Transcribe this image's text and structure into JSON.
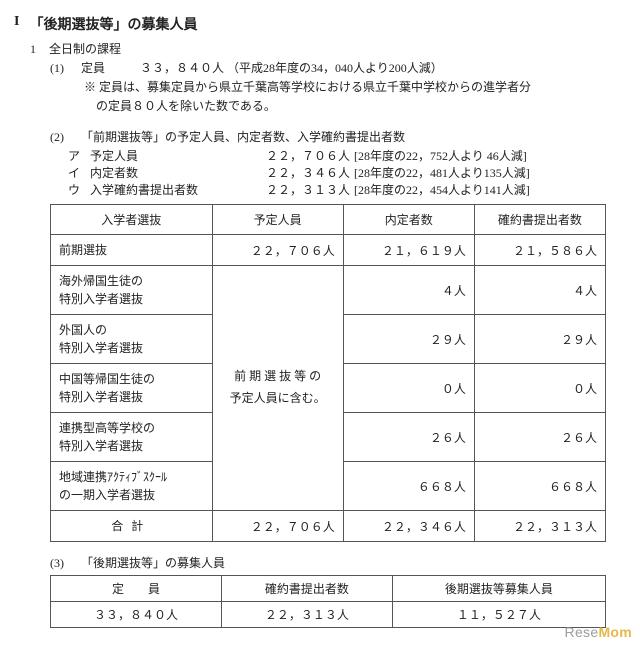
{
  "heading": {
    "roman": "I",
    "title": "「後期選抜等」の募集人員"
  },
  "section1": {
    "no": "1",
    "title": "全日制の課程",
    "item1": {
      "no": "(1)",
      "label": "定員",
      "value": "３３，８４０人",
      "paren": "（平成28年度の34，040人より200人減）",
      "note1": "※  定員は、募集定員から県立千葉高等学校における県立千葉中学校からの進学者分",
      "note2": "の定員８０人を除いた数である。"
    },
    "item2": {
      "no": "(2)",
      "title": "「前期選抜等」の予定人員、内定者数、入学確約書提出者数",
      "rows": [
        {
          "lab": "ア",
          "cap": "予定人員",
          "val": "２２，７０６人",
          "sup": "[28年度の22，752人より 46人減]"
        },
        {
          "lab": "イ",
          "cap": "内定者数",
          "val": "２２，３４６人",
          "sup": "[28年度の22，481人より135人減]"
        },
        {
          "lab": "ウ",
          "cap": "入学確約書提出者数",
          "val": "２２，３１３人",
          "sup": "[28年度の22，454人より141人減]"
        }
      ]
    },
    "table1": {
      "headers": [
        "入学者選抜",
        "予定人員",
        "内定者数",
        "確約書提出者数"
      ],
      "merged_text1": "前 期 選 抜 等 の",
      "merged_text2": "予定人員に含む。",
      "rows": [
        {
          "label": "前期選抜",
          "yotei": "２２，７０６人",
          "naitei": "２１，６１９人",
          "kakuyaku": "２１，５８６人"
        },
        {
          "label": "海外帰国生徒の\n特別入学者選抜",
          "naitei": "４人",
          "kakuyaku": "４人"
        },
        {
          "label": "外国人の\n特別入学者選抜",
          "naitei": "２９人",
          "kakuyaku": "２９人"
        },
        {
          "label": "中国等帰国生徒の\n特別入学者選抜",
          "naitei": "０人",
          "kakuyaku": "０人"
        },
        {
          "label": "連携型高等学校の\n特別入学者選抜",
          "naitei": "２６人",
          "kakuyaku": "２６人"
        },
        {
          "label": "地域連携ｱｸﾃｨﾌﾞｽｸｰﾙ\nの一期入学者選抜",
          "naitei": "６６８人",
          "kakuyaku": "６６８人"
        }
      ],
      "gokei": {
        "label": "合計",
        "yotei": "２２，７０６人",
        "naitei": "２２，３４６人",
        "kakuyaku": "２２，３１３人"
      }
    },
    "item3": {
      "no": "(3)",
      "title": "「後期選抜等」の募集人員",
      "headers": [
        "定　　員",
        "確約書提出者数",
        "後期選抜等募集人員"
      ],
      "row": [
        "３３，８４０人",
        "２２，３１３人",
        "１１，５２７人"
      ]
    }
  },
  "watermark": {
    "a": "Rese",
    "b": "Mom"
  }
}
